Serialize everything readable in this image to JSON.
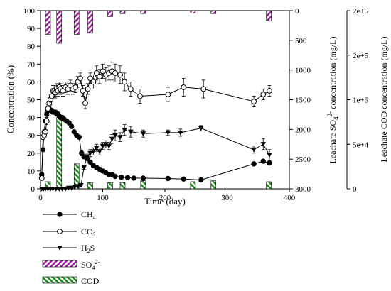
{
  "chart_data": {
    "type": "line",
    "xlabel": "Time (day)",
    "ylabel": "Concentration (%)",
    "y2label": "Leachate SO$4^{2-}$ concentration (mg/L)",
    "y2label_parts": [
      "Leachate SO",
      "4",
      "2-",
      " concentration (mg/L)"
    ],
    "y3label": "Leachate COD concentration (mg/L)",
    "xlim": [
      0,
      400
    ],
    "ylim": [
      0,
      100
    ],
    "y2lim": [
      3000,
      0
    ],
    "y3lim": [
      0,
      200000
    ],
    "x_ticks": [
      0,
      100,
      200,
      300,
      400
    ],
    "x_tick_labels": [
      "0",
      "100",
      "200",
      "300",
      "400"
    ],
    "y_ticks": [
      0,
      10,
      20,
      30,
      40,
      50,
      60,
      70,
      80,
      90,
      100
    ],
    "y_tick_labels": [
      "0",
      "10",
      "20",
      "30",
      "40",
      "50",
      "60",
      "70",
      "80",
      "90",
      "100"
    ],
    "y2_ticks": [
      0,
      500,
      1000,
      1500,
      2000,
      2500,
      3000
    ],
    "y2_tick_labels": [
      "0",
      "500",
      "1000",
      "1500",
      "2000",
      "2500",
      "3000"
    ],
    "y3_ticks": [
      0,
      50000,
      100000,
      150000,
      200000
    ],
    "y3_tick_labels": [
      "0",
      "5e+4",
      "1e+5",
      "2e+5",
      "2e+5"
    ],
    "series": [
      {
        "name": "CH4",
        "label_parts": [
          "CH",
          "4",
          ""
        ],
        "marker": "circle-filled",
        "x": [
          2,
          4,
          6,
          8,
          10,
          12,
          14,
          16,
          18,
          20,
          22,
          24,
          26,
          28,
          30,
          32,
          35,
          38,
          42,
          46,
          50,
          54,
          58,
          62,
          66,
          70,
          75,
          80,
          85,
          90,
          95,
          100,
          105,
          110,
          115,
          120,
          130,
          140,
          150,
          165,
          205,
          230,
          258,
          343,
          358,
          368
        ],
        "y": [
          8,
          22,
          32,
          38,
          42,
          44,
          45,
          44,
          44,
          43,
          43,
          43,
          42,
          42,
          41,
          40,
          40,
          39,
          38,
          37,
          35,
          32,
          30,
          29,
          20,
          18,
          17,
          15,
          13,
          12,
          11,
          10,
          9,
          8,
          8,
          7,
          6.5,
          6.3,
          6,
          6,
          5.8,
          5.5,
          5,
          14,
          15.5,
          14.5
        ],
        "yerr": [
          0.5,
          0.8,
          1,
          1,
          1,
          1,
          1,
          1,
          1,
          1,
          1,
          1,
          1,
          1,
          1,
          1,
          1,
          1,
          1,
          1,
          1,
          1,
          1,
          1,
          1.5,
          1,
          1,
          1,
          1,
          1,
          1,
          1,
          0.8,
          0.8,
          0.8,
          0.5,
          0.5,
          0.5,
          0.5,
          0.5,
          1,
          0.8,
          0.5,
          0.8,
          0.8,
          0.8
        ]
      },
      {
        "name": "CO2",
        "label_parts": [
          "CO",
          "2",
          ""
        ],
        "marker": "circle-open",
        "x": [
          2,
          4,
          6,
          8,
          10,
          12,
          14,
          16,
          18,
          20,
          22,
          24,
          26,
          28,
          30,
          32,
          36,
          40,
          44,
          48,
          52,
          56,
          60,
          64,
          68,
          72,
          76,
          80,
          85,
          90,
          95,
          100,
          105,
          110,
          115,
          120,
          128,
          135,
          145,
          160,
          205,
          230,
          262,
          343,
          358,
          368
        ],
        "y": [
          6,
          29,
          30,
          32,
          38,
          45,
          48,
          50,
          52,
          55,
          55,
          54,
          56,
          55,
          57,
          56,
          55,
          57,
          56,
          58,
          56,
          57,
          60,
          62,
          55,
          48,
          56,
          62,
          60,
          65,
          63,
          66,
          64,
          65,
          66,
          65,
          64,
          60,
          56,
          52,
          53,
          57,
          56,
          49,
          53,
          55
        ],
        "yerr": [
          0.5,
          1,
          1,
          1,
          2,
          2,
          3,
          3,
          3,
          3,
          3,
          3,
          3,
          3,
          3,
          3,
          3,
          3,
          3,
          3,
          3,
          3,
          3,
          3,
          3,
          3,
          3,
          3,
          4,
          4,
          4,
          4,
          4,
          4,
          5,
          5,
          5,
          5,
          4,
          4,
          4,
          5,
          5,
          3,
          3,
          3
        ]
      },
      {
        "name": "H2S",
        "label_parts": [
          "H",
          "2",
          "S"
        ],
        "marker": "triangle-down",
        "x": [
          2,
          5,
          8,
          12,
          16,
          20,
          25,
          30,
          35,
          40,
          45,
          50,
          55,
          60,
          65,
          70,
          75,
          80,
          85,
          90,
          95,
          100,
          105,
          110,
          115,
          120,
          128,
          135,
          145,
          165,
          205,
          225,
          258,
          343,
          358,
          368
        ],
        "y": [
          0,
          0,
          0,
          0,
          0,
          0,
          0,
          0,
          0,
          0,
          0.5,
          0.5,
          1,
          1.5,
          2,
          12,
          18,
          20,
          21,
          23,
          21,
          24,
          25,
          24,
          28,
          30,
          29,
          33,
          32,
          31,
          31.5,
          31.5,
          34,
          22,
          25,
          19
        ],
        "yerr": [
          0,
          0,
          0,
          0,
          0,
          0,
          0,
          0,
          0,
          0,
          0.2,
          0.2,
          0.2,
          0.3,
          0.3,
          1,
          1.5,
          2,
          2,
          2,
          2,
          2,
          2,
          2,
          2.5,
          3,
          2.5,
          3,
          3,
          2,
          1.5,
          2,
          1.5,
          2,
          3,
          3
        ]
      }
    ],
    "bar_series": [
      {
        "name": "SO4 2-",
        "label_parts": [
          "SO",
          "4",
          "2-"
        ],
        "axis": "y2",
        "x": [
          12,
          30,
          58,
          80,
          112,
          132,
          165,
          245,
          278,
          367
        ],
        "values": [
          400,
          550,
          400,
          380,
          100,
          50,
          50,
          40,
          50,
          170
        ]
      },
      {
        "name": "COD",
        "label_parts": [
          "COD",
          "",
          ""
        ],
        "axis": "y3",
        "x": [
          12,
          30,
          58,
          80,
          112,
          132,
          165,
          245,
          278,
          367
        ],
        "values": [
          8000,
          80000,
          28000,
          7000,
          7000,
          7000,
          9000,
          8000,
          9000,
          8000
        ]
      }
    ],
    "colors": {
      "so4": "#9c1f9c",
      "cod": "#1a8c1a",
      "stroke": "#000000"
    }
  }
}
